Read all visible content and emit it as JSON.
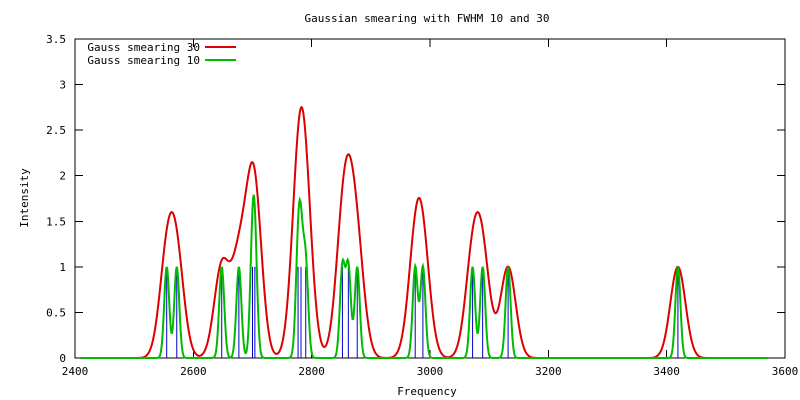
{
  "chart_data": {
    "type": "line",
    "title": "Gaussian smearing with FWHM 10 and 30",
    "xlabel": "Frequency",
    "ylabel": "Intensity",
    "xlim": [
      2400,
      3600
    ],
    "ylim": [
      0,
      3.5
    ],
    "xticks": [
      2400,
      2600,
      2800,
      3000,
      3200,
      3400,
      3600
    ],
    "xtick_labels": [
      "2400",
      "2600",
      "2800",
      "3000",
      "3200",
      "3400",
      "3600"
    ],
    "yticks": [
      0,
      0.5,
      1,
      1.5,
      2,
      2.5,
      3,
      3.5
    ],
    "ytick_labels": [
      "0",
      "0.5",
      "1",
      "1.5",
      "2",
      "2.5",
      "3",
      "3.5"
    ],
    "grid": false,
    "legend_position": "top-left",
    "sticks": {
      "color": "#0000cc",
      "x": [
        2555,
        2572,
        2648,
        2677,
        2700,
        2704,
        2777,
        2782,
        2790,
        2852,
        2862,
        2877,
        2975,
        2988,
        3072,
        3089,
        3132,
        3419
      ],
      "height": 1
    },
    "x_range": [
      2410,
      3570
    ],
    "series": [
      {
        "name": "Gauss smearing 30",
        "color": "#dd0000",
        "fwhm": 30
      },
      {
        "name": "Gauss smearing 10",
        "color": "#00bb00",
        "fwhm": 10
      }
    ]
  }
}
